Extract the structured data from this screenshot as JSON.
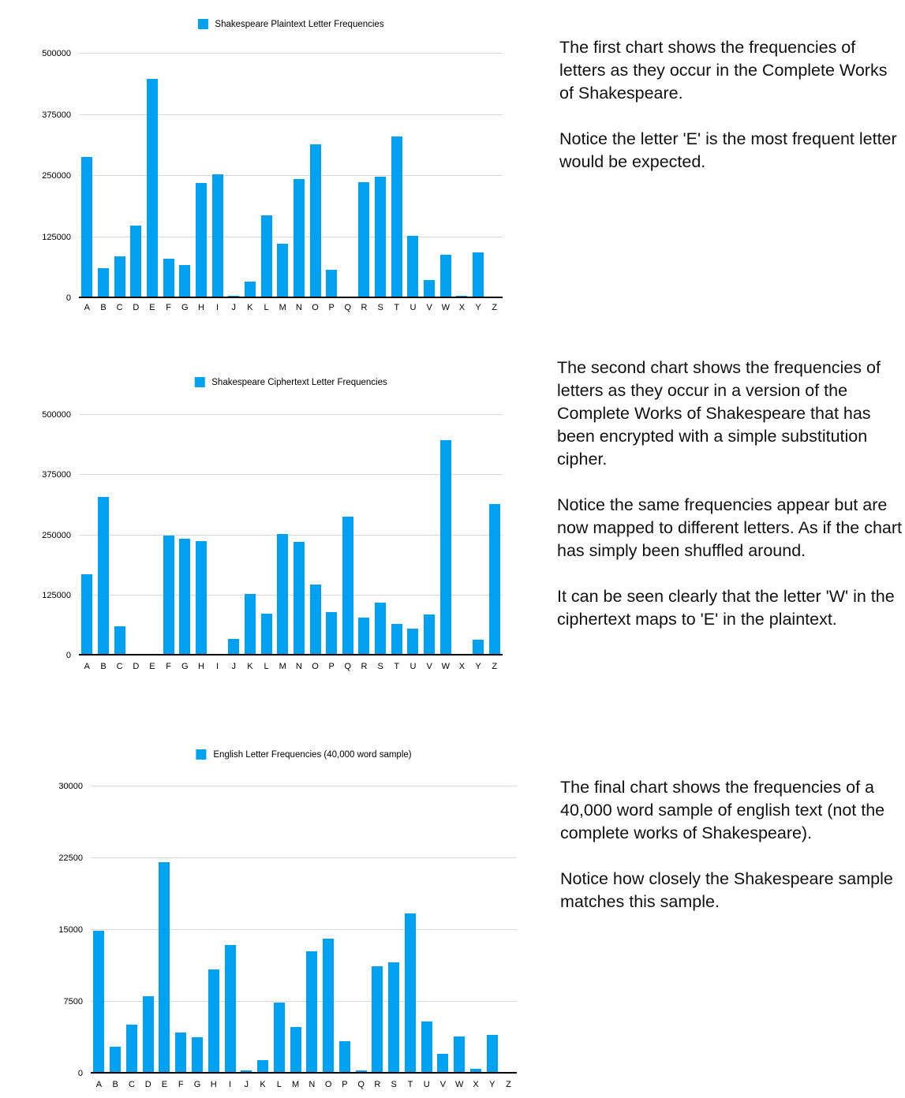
{
  "colors": {
    "bar": "#00a1f1",
    "gridline": "#d8d8d8",
    "axis": "#000000",
    "text": "#111111"
  },
  "chart_data": [
    {
      "type": "bar",
      "title": "Shakespeare Plaintext Letter Frequencies",
      "legend_position": "top",
      "grid": true,
      "xlabel": "",
      "ylabel": "",
      "ylim": [
        0,
        500000
      ],
      "y_ticks": [
        0,
        125000,
        250000,
        375000,
        500000
      ],
      "categories": [
        "A",
        "B",
        "C",
        "D",
        "E",
        "F",
        "G",
        "H",
        "I",
        "J",
        "K",
        "L",
        "M",
        "N",
        "O",
        "P",
        "Q",
        "R",
        "S",
        "T",
        "U",
        "V",
        "W",
        "X",
        "Y",
        "Z"
      ],
      "values": [
        289000,
        61000,
        86000,
        148000,
        448000,
        80000,
        67000,
        236000,
        253000,
        4500,
        34000,
        169000,
        111000,
        243000,
        315000,
        58000,
        3500,
        237000,
        249000,
        330000,
        128000,
        37000,
        89000,
        5000,
        94000,
        1600
      ]
    },
    {
      "type": "bar",
      "title": "Shakespeare Ciphertext Letter Frequencies",
      "legend_position": "top",
      "grid": true,
      "xlabel": "",
      "ylabel": "",
      "ylim": [
        0,
        500000
      ],
      "y_ticks": [
        0,
        125000,
        250000,
        375000,
        500000
      ],
      "categories": [
        "A",
        "B",
        "C",
        "D",
        "E",
        "F",
        "G",
        "H",
        "I",
        "J",
        "K",
        "L",
        "M",
        "N",
        "O",
        "P",
        "Q",
        "R",
        "S",
        "T",
        "U",
        "V",
        "W",
        "X",
        "Y",
        "Z"
      ],
      "values": [
        169000,
        330000,
        60000,
        2000,
        4000,
        249000,
        243000,
        237000,
        1500,
        34000,
        128000,
        87000,
        253000,
        236000,
        147000,
        90000,
        288000,
        79000,
        110000,
        66000,
        56000,
        86000,
        447000,
        4000,
        33000,
        314000
      ]
    },
    {
      "type": "bar",
      "title": "English Letter Frequencies (40,000 word sample)",
      "legend_position": "top",
      "grid": true,
      "xlabel": "",
      "ylabel": "",
      "ylim": [
        0,
        30000
      ],
      "y_ticks": [
        0,
        7500,
        15000,
        22500,
        30000
      ],
      "categories": [
        "A",
        "B",
        "C",
        "D",
        "E",
        "F",
        "G",
        "H",
        "I",
        "J",
        "K",
        "L",
        "M",
        "N",
        "O",
        "P",
        "Q",
        "R",
        "S",
        "T",
        "U",
        "V",
        "W",
        "X",
        "Y",
        "Z"
      ],
      "values": [
        14900,
        2800,
        5100,
        8100,
        22100,
        4300,
        3800,
        10900,
        13400,
        300,
        1400,
        7400,
        4900,
        12800,
        14100,
        3400,
        300,
        11200,
        11600,
        16700,
        5400,
        2100,
        3900,
        500,
        4000,
        100
      ]
    }
  ],
  "text_panels": [
    {
      "paragraphs": [
        "The first chart shows the frequencies of letters as they occur in the Complete Works of Shakespeare.",
        "Notice the letter 'E' is the most frequent letter would be expected."
      ]
    },
    {
      "paragraphs": [
        "The second chart shows the frequencies of letters as they occur in a version of the Complete Works of Shakespeare that has been encrypted with a simple substitution cipher.",
        "Notice the same frequencies appear but are now mapped to different letters. As if the chart has simply been shuffled around.",
        "It can be seen clearly that the letter 'W' in the ciphertext maps to 'E' in the plaintext."
      ]
    },
    {
      "paragraphs": [
        "The final chart shows the frequencies of a 40,000 word sample of english text (not the complete works of Shakespeare).",
        "Notice how closely the Shakespeare sample matches this sample."
      ]
    }
  ]
}
